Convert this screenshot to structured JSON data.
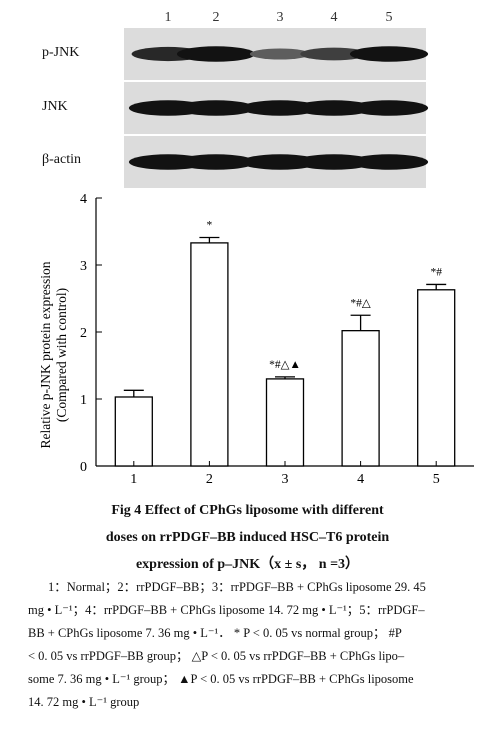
{
  "blot": {
    "lane_labels": [
      "1",
      "2",
      "3",
      "4",
      "5"
    ],
    "rows": [
      {
        "label": "p-JNK",
        "band_intensity": [
          0.8,
          0.95,
          0.45,
          0.65,
          0.95
        ]
      },
      {
        "label": "JNK",
        "band_intensity": [
          0.95,
          0.95,
          0.95,
          0.95,
          0.95
        ]
      },
      {
        "label": "β-actin",
        "band_intensity": [
          0.95,
          0.95,
          0.95,
          0.95,
          0.95
        ]
      }
    ]
  },
  "chart_data": {
    "type": "bar",
    "categories": [
      "1",
      "2",
      "3",
      "4",
      "5"
    ],
    "series": [
      {
        "values": [
          1.03,
          3.33,
          1.3,
          2.02,
          2.63
        ],
        "errors": [
          0.1,
          0.08,
          0.03,
          0.23,
          0.08
        ],
        "annotations": [
          "",
          "*",
          "*#△▲",
          "*#△",
          "*#"
        ]
      }
    ],
    "ylabel_lines": [
      "Relative p-JNK protein expression",
      "(Compared with control)"
    ],
    "ylim": [
      0,
      4
    ],
    "yticks": [
      "0",
      "1",
      "2",
      "3",
      "4"
    ],
    "grid": false,
    "legend": "none"
  },
  "caption": {
    "line1": "Fig 4    Effect of CPhGs liposome with different",
    "line2": "doses on rrPDGF–BB induced HSC–T6 protein",
    "line3": "expression of p–JNK（x ± s， n =3）"
  },
  "legend_text": {
    "line1": "1：Normal；2：rrPDGF–BB；3：rrPDGF–BB + CPhGs liposome 29. 45",
    "line2": "mg • L⁻¹；4：rrPDGF–BB + CPhGs liposome 14. 72 mg • L⁻¹；5：rrPDGF–",
    "line3": "BB + CPhGs liposome 7. 36 mg • L⁻¹．  * P < 0. 05 vs normal group； #P",
    "line4": "< 0. 05 vs rrPDGF–BB group； △P < 0. 05 vs rrPDGF–BB + CPhGs lipo–",
    "line5": "some 7. 36 mg • L⁻¹ group； ▲P < 0. 05 vs rrPDGF–BB + CPhGs liposome",
    "line6": "14. 72 mg • L⁻¹ group"
  }
}
